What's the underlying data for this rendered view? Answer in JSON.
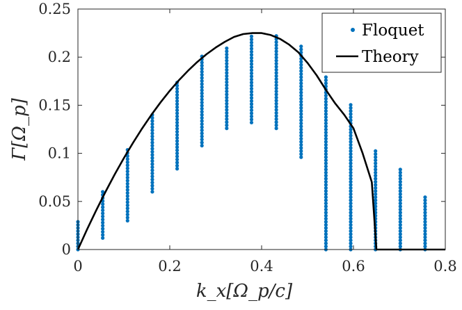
{
  "chart_data": {
    "type": "scatter",
    "xlabel": "k_x[Ω_p/c]",
    "ylabel": "Γ[Ω_p]",
    "xlim": [
      0,
      0.8
    ],
    "ylim": [
      0,
      0.25
    ],
    "x_ticks": [
      "0",
      "0.2",
      "0.4",
      "0.6",
      "0.8"
    ],
    "y_ticks": [
      "0",
      "0.05",
      "0.1",
      "0.15",
      "0.2",
      "0.25"
    ],
    "x_tick_values": [
      0,
      0.2,
      0.4,
      0.6,
      0.8
    ],
    "y_tick_values": [
      0,
      0.05,
      0.1,
      0.15,
      0.2,
      0.25
    ],
    "grid": false,
    "legend_position": "top-right",
    "series": [
      {
        "name": "Floquet",
        "kind": "dot-columns",
        "color": "#0072BD",
        "columns": [
          {
            "x": 0.0,
            "y_min": 0.0,
            "y_max": 0.031
          },
          {
            "x": 0.054,
            "y_min": 0.012,
            "y_max": 0.061
          },
          {
            "x": 0.108,
            "y_min": 0.03,
            "y_max": 0.104
          },
          {
            "x": 0.162,
            "y_min": 0.06,
            "y_max": 0.141
          },
          {
            "x": 0.216,
            "y_min": 0.084,
            "y_max": 0.176
          },
          {
            "x": 0.27,
            "y_min": 0.108,
            "y_max": 0.201
          },
          {
            "x": 0.324,
            "y_min": 0.126,
            "y_max": 0.212
          },
          {
            "x": 0.378,
            "y_min": 0.132,
            "y_max": 0.224
          },
          {
            "x": 0.432,
            "y_min": 0.126,
            "y_max": 0.224
          },
          {
            "x": 0.486,
            "y_min": 0.096,
            "y_max": 0.212
          },
          {
            "x": 0.54,
            "y_min": 0.0,
            "y_max": 0.181
          },
          {
            "x": 0.594,
            "y_min": 0.0,
            "y_max": 0.152
          },
          {
            "x": 0.648,
            "y_min": 0.0,
            "y_max": 0.104
          },
          {
            "x": 0.702,
            "y_min": 0.0,
            "y_max": 0.086
          },
          {
            "x": 0.756,
            "y_min": 0.0,
            "y_max": 0.055
          }
        ]
      },
      {
        "name": "Theory",
        "kind": "line",
        "color": "#000000",
        "points": [
          [
            0.0,
            0.0
          ],
          [
            0.02,
            0.021
          ],
          [
            0.04,
            0.041
          ],
          [
            0.06,
            0.06
          ],
          [
            0.08,
            0.078
          ],
          [
            0.1,
            0.095
          ],
          [
            0.12,
            0.111
          ],
          [
            0.14,
            0.126
          ],
          [
            0.16,
            0.14
          ],
          [
            0.18,
            0.153
          ],
          [
            0.2,
            0.165
          ],
          [
            0.22,
            0.176
          ],
          [
            0.24,
            0.186
          ],
          [
            0.26,
            0.195
          ],
          [
            0.28,
            0.203
          ],
          [
            0.3,
            0.21
          ],
          [
            0.32,
            0.216
          ],
          [
            0.34,
            0.221
          ],
          [
            0.36,
            0.224
          ],
          [
            0.38,
            0.225
          ],
          [
            0.4,
            0.225
          ],
          [
            0.42,
            0.223
          ],
          [
            0.44,
            0.219
          ],
          [
            0.46,
            0.213
          ],
          [
            0.48,
            0.205
          ],
          [
            0.5,
            0.194
          ],
          [
            0.52,
            0.181
          ],
          [
            0.54,
            0.166
          ],
          [
            0.56,
            0.152
          ],
          [
            0.58,
            0.14
          ],
          [
            0.6,
            0.126
          ],
          [
            0.62,
            0.1
          ],
          [
            0.64,
            0.07
          ],
          [
            0.65,
            0.0
          ],
          [
            0.8,
            0.0
          ]
        ]
      }
    ]
  }
}
